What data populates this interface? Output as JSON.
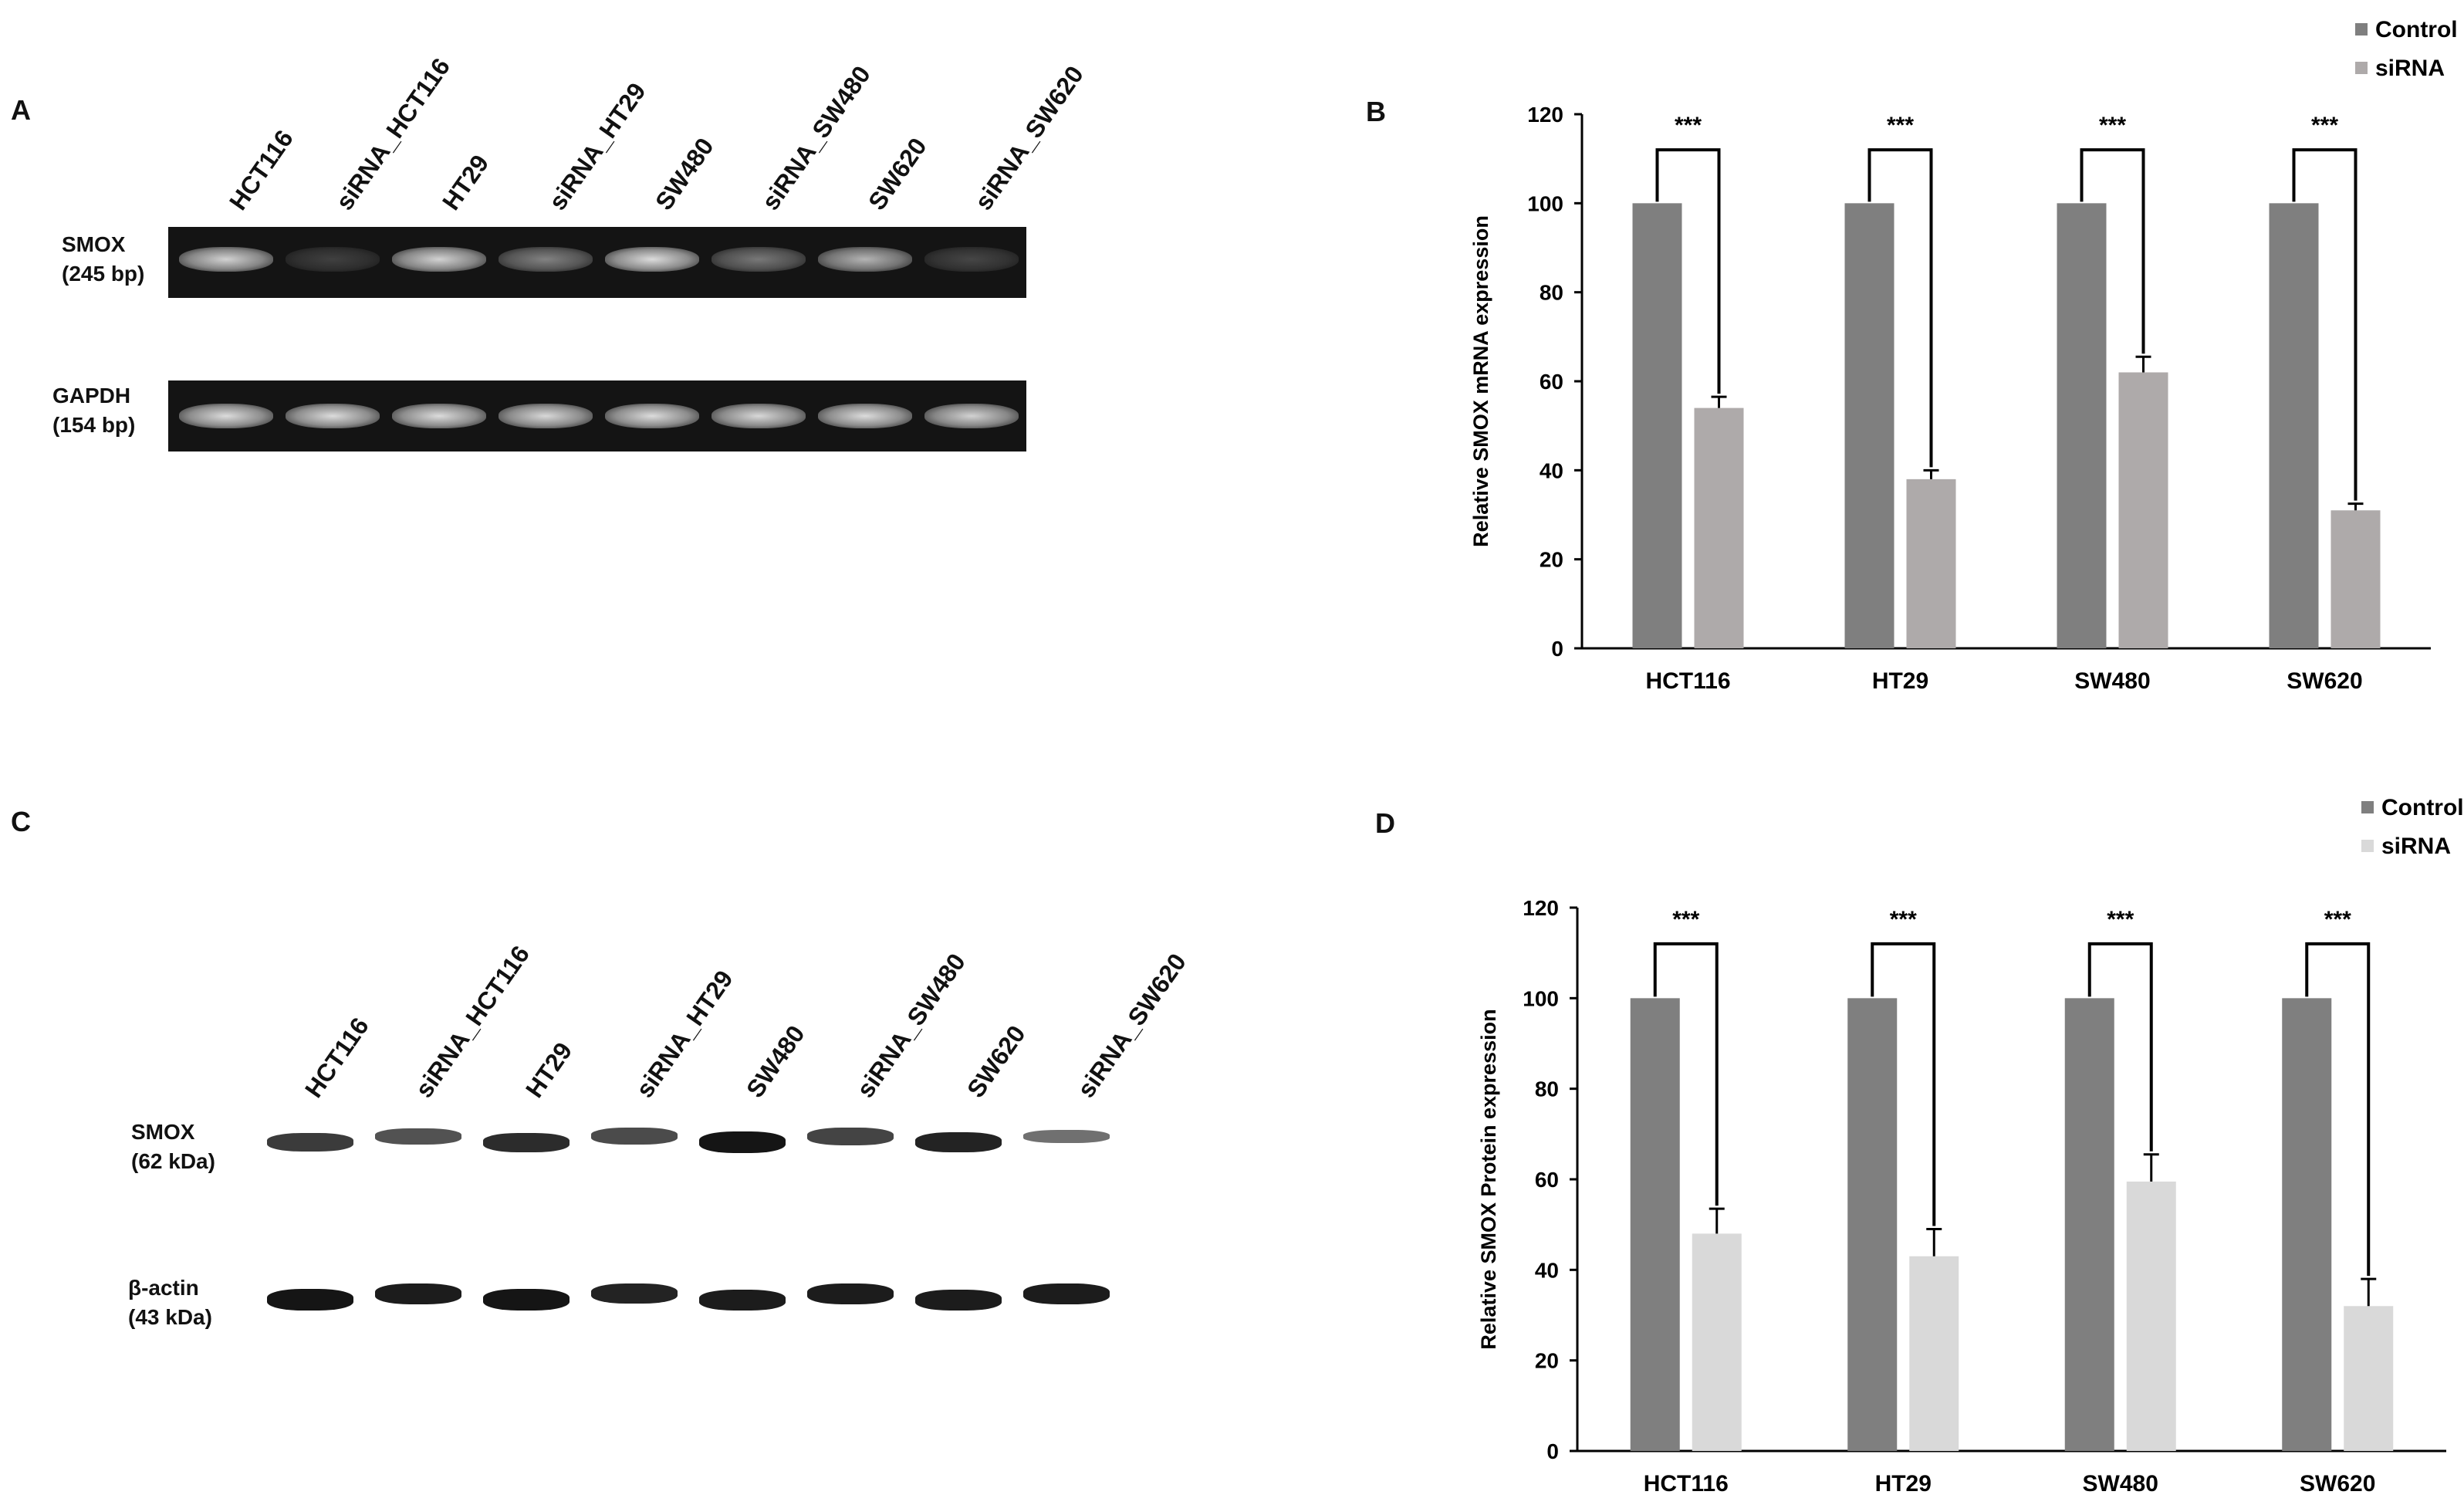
{
  "panels": {
    "a": {
      "letter": "A",
      "lanes": [
        "HCT116",
        "siRNA_HCT116",
        "HT29",
        "siRNA_HT29",
        "SW480",
        "siRNA_SW480",
        "SW620",
        "siRNA_SW620"
      ],
      "rows": [
        {
          "name": "SMOX",
          "size": "(245 bp)",
          "intensity": [
            0.85,
            0.12,
            0.85,
            0.45,
            0.9,
            0.4,
            0.7,
            0.15
          ]
        },
        {
          "name": "GAPDH",
          "size": "(154 bp)",
          "intensity": [
            0.9,
            0.9,
            0.9,
            0.88,
            0.9,
            0.88,
            0.9,
            0.85
          ]
        }
      ]
    },
    "c": {
      "letter": "C",
      "lanes": [
        "HCT116",
        "siRNA_HCT116",
        "HT29",
        "siRNA_HT29",
        "SW480",
        "siRNA_SW480",
        "SW620",
        "siRNA_SW620"
      ],
      "rows": [
        {
          "name": "SMOX",
          "size": "(62 kDa)",
          "intensity": [
            0.75,
            0.6,
            0.85,
            0.65,
            1.0,
            0.7,
            0.9,
            0.4
          ]
        },
        {
          "name": "β-actin",
          "size": "(43 kDa)",
          "intensity": [
            1.0,
            0.95,
            1.0,
            0.9,
            0.95,
            0.95,
            0.95,
            0.95
          ]
        }
      ]
    },
    "b": {
      "letter": "B"
    },
    "d": {
      "letter": "D"
    }
  },
  "chart_data": [
    {
      "type": "bar",
      "panel": "B",
      "categories": [
        "HCT116",
        "HT29",
        "SW480",
        "SW620"
      ],
      "series": [
        {
          "name": "Control",
          "values": [
            100,
            100,
            100,
            100
          ],
          "errors": [
            0,
            0,
            0,
            0
          ],
          "color": "#7f7f7f"
        },
        {
          "name": "siRNA",
          "values": [
            54,
            38,
            62,
            31
          ],
          "errors": [
            2.5,
            2,
            3.5,
            1.5
          ],
          "color": "#aeaaaa"
        }
      ],
      "significance": [
        "***",
        "***",
        "***",
        "***"
      ],
      "ylabel": "Relative SMOX mRNA expression",
      "xlabel": "",
      "ylim": [
        0,
        120
      ],
      "yticks": [
        0,
        20,
        40,
        60,
        80,
        100,
        120
      ],
      "legend": "top-right"
    },
    {
      "type": "bar",
      "panel": "D",
      "categories": [
        "HCT116",
        "HT29",
        "SW480",
        "SW620"
      ],
      "series": [
        {
          "name": "Control",
          "values": [
            100,
            100,
            100,
            100
          ],
          "errors": [
            0,
            0,
            0,
            0
          ],
          "color": "#7f7f7f"
        },
        {
          "name": "siRNA",
          "values": [
            48,
            43,
            59.5,
            32
          ],
          "errors": [
            5.5,
            6,
            6,
            6
          ],
          "color": "#d9d9d9"
        }
      ],
      "significance": [
        "***",
        "***",
        "***",
        "***"
      ],
      "ylabel": "Relative SMOX Protein expression",
      "xlabel": "",
      "ylim": [
        0,
        120
      ],
      "yticks": [
        0,
        20,
        40,
        60,
        80,
        100,
        120
      ],
      "legend": "top-right"
    }
  ]
}
